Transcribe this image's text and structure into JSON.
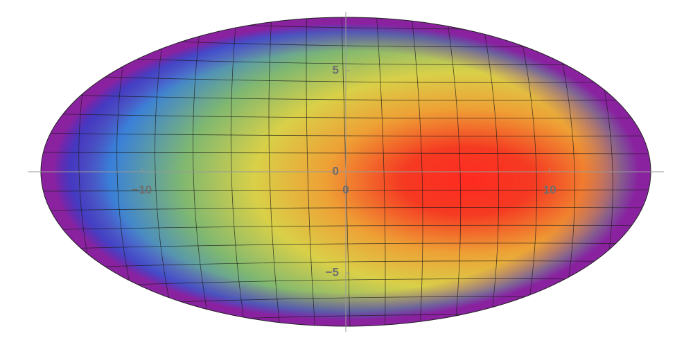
{
  "chart_data": {
    "type": "density",
    "xlim": [
      -15.6,
      15.6
    ],
    "ylim": [
      -7.9,
      7.9
    ],
    "xticks": [
      {
        "value": -10,
        "label": "−10"
      },
      0,
      10
    ],
    "yticks": [
      {
        "value": -5,
        "label": "−5"
      },
      0,
      5
    ]
  }
}
